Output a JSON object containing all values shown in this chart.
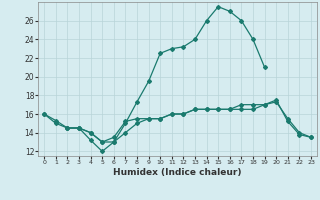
{
  "title": "",
  "xlabel": "Humidex (Indice chaleur)",
  "ylabel": "",
  "bg_color": "#d6ecf0",
  "grid_color": "#b8d4d8",
  "line_color": "#1a7a6e",
  "xlim": [
    -0.5,
    23.5
  ],
  "ylim": [
    11.5,
    28
  ],
  "yticks": [
    12,
    14,
    16,
    18,
    20,
    22,
    24,
    26
  ],
  "xticks": [
    0,
    1,
    2,
    3,
    4,
    5,
    6,
    7,
    8,
    9,
    10,
    11,
    12,
    13,
    14,
    15,
    16,
    17,
    18,
    19,
    20,
    21,
    22,
    23
  ],
  "line1_x": [
    0,
    1,
    2,
    3,
    4,
    5,
    6,
    7,
    8,
    9,
    10,
    11,
    12,
    13,
    14,
    15,
    16,
    17,
    18,
    19
  ],
  "line1_y": [
    16,
    15.3,
    14.5,
    14.5,
    13.2,
    12.0,
    13.0,
    15.0,
    17.3,
    19.5,
    22.5,
    23.0,
    23.2,
    24.0,
    26.0,
    27.5,
    27.0,
    26.0,
    24.0,
    21.0
  ],
  "line2_x": [
    2,
    3,
    4,
    5,
    6,
    7,
    8,
    9,
    10,
    11,
    12,
    13,
    14,
    15,
    16,
    17,
    18,
    19,
    20,
    21,
    22,
    23
  ],
  "line2_y": [
    14.5,
    14.5,
    14.0,
    13.0,
    13.5,
    15.2,
    15.5,
    15.5,
    15.5,
    16.0,
    16.0,
    16.5,
    16.5,
    16.5,
    16.5,
    17.0,
    17.0,
    17.0,
    17.3,
    15.5,
    14.0,
    13.5
  ],
  "line3_x": [
    0,
    1,
    2,
    3,
    4,
    5,
    6,
    7,
    8,
    9,
    10,
    11,
    12,
    13,
    14,
    15,
    16,
    17,
    18,
    19,
    20,
    21,
    22,
    23
  ],
  "line3_y": [
    16.0,
    15.0,
    14.5,
    14.5,
    14.0,
    13.0,
    13.0,
    14.0,
    15.0,
    15.5,
    15.5,
    16.0,
    16.0,
    16.5,
    16.5,
    16.5,
    16.5,
    16.5,
    16.5,
    17.0,
    17.5,
    15.2,
    13.8,
    13.5
  ]
}
